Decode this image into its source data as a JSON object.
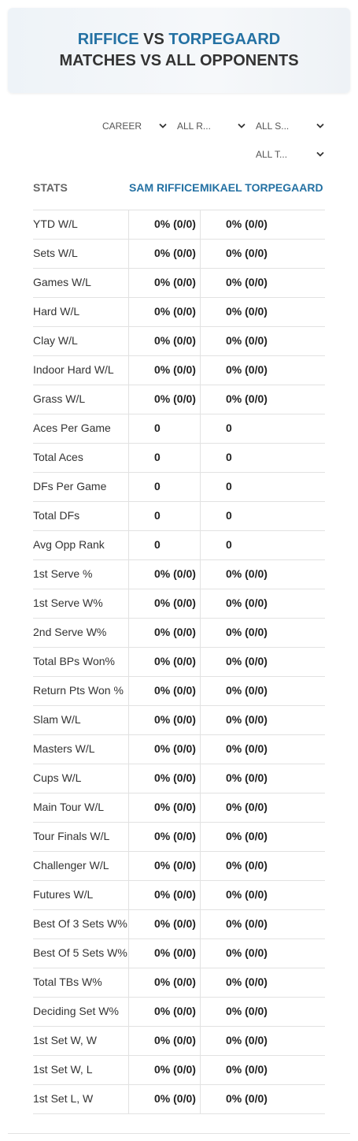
{
  "header": {
    "player1": "RIFFICE",
    "vs": "VS",
    "player2": "TORPEGAARD",
    "rest": "MATCHES VS ALL OPPONENTS"
  },
  "filters": [
    "CAREER",
    "ALL R...",
    "ALL S...",
    "ALL T..."
  ],
  "table": {
    "columns": [
      "STATS",
      "SAM RIFFICE",
      "MIKAEL TORPEGAARD"
    ],
    "rows": [
      [
        "YTD W/L",
        "0% (0/0)",
        "0% (0/0)"
      ],
      [
        "Sets W/L",
        "0% (0/0)",
        "0% (0/0)"
      ],
      [
        "Games W/L",
        "0% (0/0)",
        "0% (0/0)"
      ],
      [
        "Hard W/L",
        "0% (0/0)",
        "0% (0/0)"
      ],
      [
        "Clay W/L",
        "0% (0/0)",
        "0% (0/0)"
      ],
      [
        "Indoor Hard W/L",
        "0% (0/0)",
        "0% (0/0)"
      ],
      [
        "Grass W/L",
        "0% (0/0)",
        "0% (0/0)"
      ],
      [
        "Aces Per Game",
        "0",
        "0"
      ],
      [
        "Total Aces",
        "0",
        "0"
      ],
      [
        "DFs Per Game",
        "0",
        "0"
      ],
      [
        "Total DFs",
        "0",
        "0"
      ],
      [
        "Avg Opp Rank",
        "0",
        "0"
      ],
      [
        "1st Serve %",
        "0% (0/0)",
        "0% (0/0)"
      ],
      [
        "1st Serve W%",
        "0% (0/0)",
        "0% (0/0)"
      ],
      [
        "2nd Serve W%",
        "0% (0/0)",
        "0% (0/0)"
      ],
      [
        "Total BPs Won%",
        "0% (0/0)",
        "0% (0/0)"
      ],
      [
        "Return Pts Won %",
        "0% (0/0)",
        "0% (0/0)"
      ],
      [
        "Slam W/L",
        "0% (0/0)",
        "0% (0/0)"
      ],
      [
        "Masters W/L",
        "0% (0/0)",
        "0% (0/0)"
      ],
      [
        "Cups W/L",
        "0% (0/0)",
        "0% (0/0)"
      ],
      [
        "Main Tour W/L",
        "0% (0/0)",
        "0% (0/0)"
      ],
      [
        "Tour Finals W/L",
        "0% (0/0)",
        "0% (0/0)"
      ],
      [
        "Challenger W/L",
        "0% (0/0)",
        "0% (0/0)"
      ],
      [
        "Futures W/L",
        "0% (0/0)",
        "0% (0/0)"
      ],
      [
        "Best Of 3 Sets W%",
        "0% (0/0)",
        "0% (0/0)"
      ],
      [
        "Best Of 5 Sets W%",
        "0% (0/0)",
        "0% (0/0)"
      ],
      [
        "Total TBs W%",
        "0% (0/0)",
        "0% (0/0)"
      ],
      [
        "Deciding Set W%",
        "0% (0/0)",
        "0% (0/0)"
      ],
      [
        "1st Set W, W",
        "0% (0/0)",
        "0% (0/0)"
      ],
      [
        "1st Set W, L",
        "0% (0/0)",
        "0% (0/0)"
      ],
      [
        "1st Set L, W",
        "0% (0/0)",
        "0% (0/0)"
      ]
    ]
  }
}
